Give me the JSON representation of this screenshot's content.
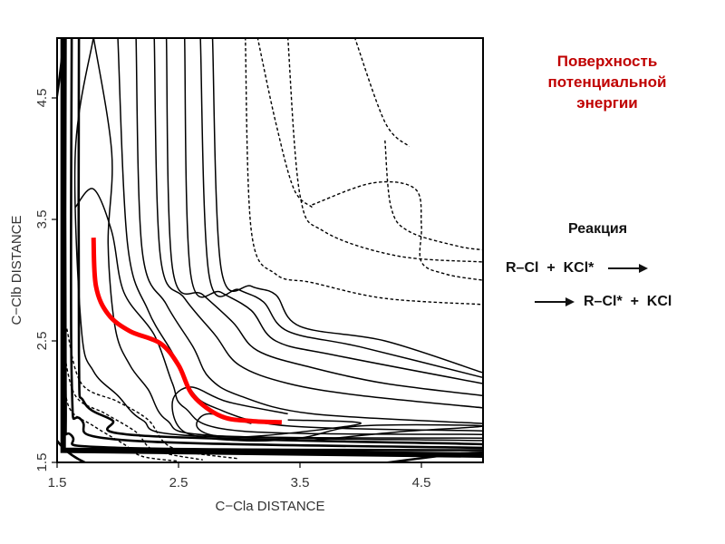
{
  "title_lines": [
    "Поверхность",
    "потенциальной",
    "энергии"
  ],
  "reaction": {
    "heading": "Реакция",
    "line1_left": "R–Cl  +  KCl*",
    "line2_right": "R–Cl*  +  KCl",
    "arrow_icon": "long-right-arrow"
  },
  "colors": {
    "title": "#c00000",
    "path": "#ff0000",
    "contour": "#000000"
  },
  "chart_data": {
    "type": "contour",
    "title": "",
    "xlabel": "C−Cla DISTANCE",
    "ylabel": "C−Clb DISTANCE",
    "xlim": [
      1.5,
      5.0
    ],
    "ylim": [
      1.5,
      5.0
    ],
    "xticks": [
      1.5,
      2.5,
      3.5,
      4.5
    ],
    "yticks": [
      1.5,
      2.5,
      3.5,
      4.5
    ],
    "xtick_labels": [
      "1.5",
      "2.5",
      "3.5",
      "4.5"
    ],
    "ytick_labels": [
      "1.5",
      "2.5",
      "3.5",
      "4.5"
    ],
    "grid": false,
    "reaction_path": {
      "color": "#ff0000",
      "points": [
        [
          1.8,
          3.35
        ],
        [
          1.82,
          2.95
        ],
        [
          1.92,
          2.72
        ],
        [
          2.1,
          2.58
        ],
        [
          2.35,
          2.48
        ],
        [
          2.5,
          2.3
        ],
        [
          2.62,
          2.05
        ],
        [
          2.85,
          1.88
        ],
        [
          3.1,
          1.84
        ],
        [
          3.35,
          1.83
        ]
      ]
    },
    "contours_solid": [
      [
        [
          1.55,
          5.0
        ],
        [
          1.55,
          1.62
        ],
        [
          5.0,
          1.58
        ]
      ],
      [
        [
          1.57,
          5.0
        ],
        [
          1.57,
          2.1
        ],
        [
          1.62,
          1.72
        ],
        [
          2.0,
          1.62
        ],
        [
          5.0,
          1.6
        ]
      ],
      [
        [
          1.62,
          5.0
        ],
        [
          1.62,
          2.2
        ],
        [
          1.7,
          1.85
        ],
        [
          2.1,
          1.68
        ],
        [
          5.0,
          1.62
        ]
      ],
      [
        [
          1.68,
          5.0
        ],
        [
          1.68,
          2.4
        ],
        [
          1.72,
          2.0
        ],
        [
          1.95,
          1.85
        ],
        [
          2.2,
          1.72
        ],
        [
          5.0,
          1.65
        ]
      ],
      [
        [
          1.8,
          5.0
        ],
        [
          1.65,
          4.05
        ],
        [
          1.7,
          2.6
        ],
        [
          1.8,
          2.25
        ],
        [
          2.0,
          2.05
        ],
        [
          2.2,
          1.85
        ],
        [
          2.6,
          1.72
        ],
        [
          5.0,
          1.68
        ]
      ],
      [
        [
          1.8,
          5.0
        ],
        [
          1.95,
          4.05
        ],
        [
          1.92,
          3.3
        ],
        [
          1.98,
          2.6
        ],
        [
          2.1,
          2.3
        ],
        [
          2.25,
          2.1
        ],
        [
          2.4,
          1.85
        ],
        [
          2.8,
          1.72
        ],
        [
          5.0,
          1.7
        ]
      ],
      [
        [
          1.65,
          3.6
        ],
        [
          1.8,
          3.75
        ],
        [
          1.95,
          3.4
        ],
        [
          2.05,
          2.9
        ],
        [
          2.3,
          2.55
        ],
        [
          2.45,
          2.15
        ],
        [
          2.55,
          1.95
        ],
        [
          3.0,
          1.76
        ],
        [
          5.0,
          1.73
        ]
      ],
      [
        [
          2.0,
          5.0
        ],
        [
          2.08,
          3.3
        ],
        [
          2.25,
          2.75
        ],
        [
          2.45,
          2.4
        ],
        [
          2.6,
          2.1
        ],
        [
          2.8,
          1.95
        ],
        [
          3.4,
          1.8
        ],
        [
          5.0,
          1.76
        ]
      ],
      [
        [
          2.15,
          5.0
        ],
        [
          2.2,
          3.25
        ],
        [
          2.4,
          2.8
        ],
        [
          2.62,
          2.45
        ],
        [
          2.75,
          2.2
        ],
        [
          3.0,
          2.05
        ],
        [
          3.6,
          1.9
        ],
        [
          5.0,
          1.82
        ]
      ],
      [
        [
          2.3,
          5.0
        ],
        [
          2.35,
          3.2
        ],
        [
          2.55,
          2.85
        ],
        [
          2.8,
          2.55
        ],
        [
          3.0,
          2.3
        ],
        [
          3.4,
          2.15
        ],
        [
          4.0,
          2.05
        ],
        [
          5.0,
          1.95
        ]
      ],
      [
        [
          2.4,
          5.0
        ],
        [
          2.45,
          3.1
        ],
        [
          2.7,
          2.88
        ],
        [
          2.95,
          2.65
        ],
        [
          3.15,
          2.42
        ],
        [
          3.6,
          2.28
        ],
        [
          4.2,
          2.15
        ],
        [
          5.0,
          2.05
        ]
      ],
      [
        [
          2.55,
          5.0
        ],
        [
          2.6,
          3.05
        ],
        [
          2.85,
          2.9
        ],
        [
          3.1,
          2.75
        ],
        [
          3.3,
          2.5
        ],
        [
          3.8,
          2.38
        ],
        [
          5.0,
          2.15
        ]
      ],
      [
        [
          2.68,
          5.0
        ],
        [
          2.75,
          3.05
        ],
        [
          3.0,
          2.92
        ],
        [
          3.2,
          2.82
        ],
        [
          3.4,
          2.58
        ],
        [
          4.0,
          2.45
        ],
        [
          5.0,
          2.2
        ]
      ],
      [
        [
          2.78,
          5.0
        ],
        [
          2.85,
          3.1
        ],
        [
          3.1,
          2.95
        ],
        [
          3.3,
          2.88
        ],
        [
          3.5,
          2.62
        ],
        [
          4.2,
          2.5
        ],
        [
          5.0,
          2.24
        ]
      ],
      [
        [
          3.4,
          1.9
        ],
        [
          2.9,
          2.0
        ],
        [
          2.6,
          2.12
        ],
        [
          2.45,
          2.0
        ],
        [
          2.55,
          1.75
        ],
        [
          3.0,
          1.68
        ],
        [
          3.5,
          1.7
        ],
        [
          4.0,
          1.8
        ],
        [
          5.0,
          1.8
        ],
        [
          4.3,
          1.75
        ],
        [
          3.6,
          1.68
        ]
      ],
      [
        [
          3.1,
          1.82
        ],
        [
          2.75,
          1.9
        ],
        [
          2.65,
          1.8
        ],
        [
          2.8,
          1.72
        ],
        [
          3.2,
          1.72
        ],
        [
          4.0,
          1.82
        ],
        [
          3.4,
          1.85
        ]
      ]
    ],
    "contours_dashed": [
      [
        [
          1.55,
          2.3
        ],
        [
          1.6,
          1.95
        ],
        [
          1.8,
          1.8
        ],
        [
          2.05,
          1.65
        ],
        [
          2.2,
          1.55
        ],
        [
          2.5,
          1.51
        ]
      ],
      [
        [
          1.55,
          2.45
        ],
        [
          1.65,
          2.05
        ],
        [
          1.9,
          1.9
        ],
        [
          2.15,
          1.75
        ],
        [
          2.3,
          1.6
        ],
        [
          2.7,
          1.52
        ]
      ],
      [
        [
          1.58,
          2.6
        ],
        [
          1.7,
          2.15
        ],
        [
          2.0,
          2.0
        ],
        [
          2.25,
          1.85
        ],
        [
          2.45,
          1.62
        ],
        [
          3.0,
          1.53
        ]
      ],
      [
        [
          3.05,
          5.0
        ],
        [
          3.1,
          3.4
        ],
        [
          3.3,
          3.05
        ],
        [
          3.6,
          2.98
        ],
        [
          4.2,
          2.85
        ],
        [
          5.0,
          2.8
        ]
      ],
      [
        [
          3.4,
          5.0
        ],
        [
          3.5,
          3.7
        ],
        [
          3.7,
          3.4
        ],
        [
          4.3,
          3.2
        ],
        [
          5.0,
          3.15
        ]
      ],
      [
        [
          3.95,
          5.0
        ],
        [
          4.2,
          4.3
        ],
        [
          4.4,
          4.1
        ]
      ],
      [
        [
          4.2,
          4.15
        ],
        [
          4.25,
          3.6
        ],
        [
          4.4,
          3.4
        ],
        [
          4.8,
          3.28
        ],
        [
          5.0,
          3.25
        ]
      ],
      [
        [
          3.6,
          3.6
        ],
        [
          3.45,
          3.75
        ],
        [
          3.3,
          4.3
        ],
        [
          3.15,
          5.0
        ]
      ],
      [
        [
          3.6,
          3.62
        ],
        [
          4.1,
          3.8
        ],
        [
          4.45,
          3.75
        ],
        [
          4.5,
          3.45
        ],
        [
          4.5,
          3.15
        ],
        [
          4.7,
          3.05
        ],
        [
          5.0,
          3.0
        ]
      ]
    ]
  }
}
